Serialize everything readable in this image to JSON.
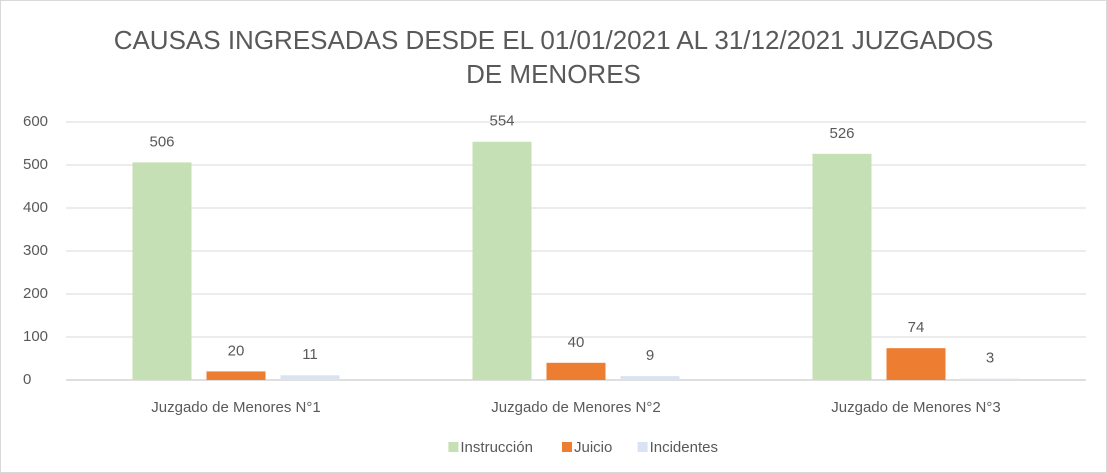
{
  "chart_data": {
    "type": "bar",
    "title": "CAUSAS INGRESADAS DESDE EL 01/01/2021 AL 31/12/2021 JUZGADOS DE MENORES",
    "categories": [
      "Juzgado de Menores N°1",
      "Juzgado de Menores N°2",
      "Juzgado de Menores N°3"
    ],
    "series": [
      {
        "name": "Instrucción",
        "color": "#c5e0b4",
        "values": [
          506,
          554,
          526
        ]
      },
      {
        "name": "Juicio",
        "color": "#ed7d31",
        "values": [
          20,
          40,
          74
        ]
      },
      {
        "name": "Incidentes",
        "color": "#dae3f3",
        "values": [
          11,
          9,
          3
        ]
      }
    ],
    "ylim": [
      0,
      600
    ],
    "yticks": [
      0,
      100,
      200,
      300,
      400,
      500,
      600
    ],
    "grid": true,
    "legend": "bottom"
  }
}
